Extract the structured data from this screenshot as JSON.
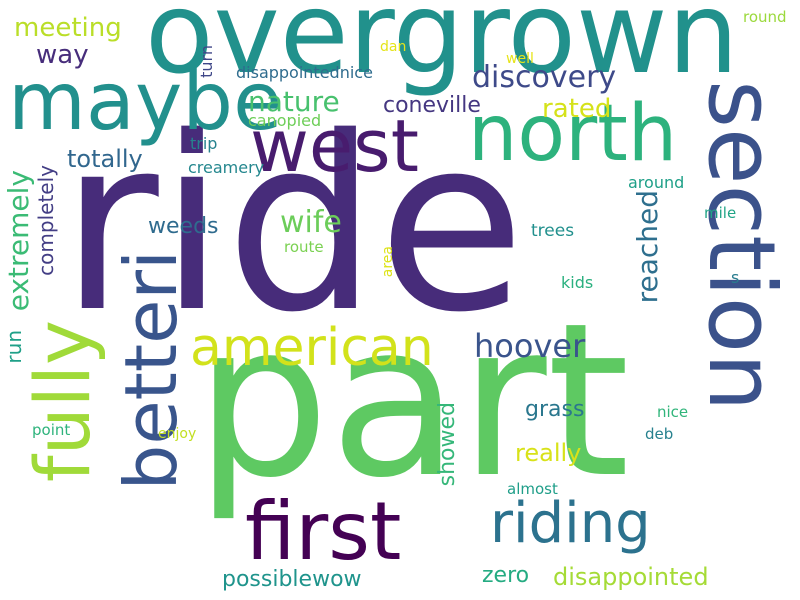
{
  "words": [
    {
      "text": "ride",
      "color": "#472c7a"
    },
    {
      "text": "part",
      "color": "#5ec962"
    },
    {
      "text": "overgrown",
      "color": "#21918c"
    },
    {
      "text": "section",
      "color": "#3b528b"
    },
    {
      "text": "maybe",
      "color": "#22908d"
    },
    {
      "text": "west",
      "color": "#481c6e"
    },
    {
      "text": "north",
      "color": "#2db27d"
    },
    {
      "text": "fully",
      "color": "#a0da39"
    },
    {
      "text": "betteri",
      "color": "#39558c"
    },
    {
      "text": "first",
      "color": "#440154"
    },
    {
      "text": "american",
      "color": "#d2e21b"
    },
    {
      "text": "riding",
      "color": "#2c728e"
    },
    {
      "text": "discovery",
      "color": "#3e4a89"
    },
    {
      "text": "hoover",
      "color": "#3a548c"
    },
    {
      "text": "nature",
      "color": "#48c16e"
    },
    {
      "text": "coneville",
      "color": "#453781"
    },
    {
      "text": "rated",
      "color": "#d5e21a"
    },
    {
      "text": "totally",
      "color": "#31678e"
    },
    {
      "text": "extremely",
      "color": "#3bbb75"
    },
    {
      "text": "completely",
      "color": "#433e85"
    },
    {
      "text": "meeting",
      "color": "#bade28"
    },
    {
      "text": "way",
      "color": "#472d7b"
    },
    {
      "text": "wife",
      "color": "#6ccd5a"
    },
    {
      "text": "weeds",
      "color": "#2f6b8e"
    },
    {
      "text": "reached",
      "color": "#2e6f8e"
    },
    {
      "text": "run",
      "color": "#1fa088"
    },
    {
      "text": "grass",
      "color": "#2a778e"
    },
    {
      "text": "really",
      "color": "#d8e219"
    },
    {
      "text": "showed",
      "color": "#35b779"
    },
    {
      "text": "zero",
      "color": "#25ab82"
    },
    {
      "text": "disappointed",
      "color": "#a5db36"
    },
    {
      "text": "possiblewow",
      "color": "#1f948c"
    },
    {
      "text": "disappointednice",
      "color": "#2f6c8e"
    },
    {
      "text": "canopied",
      "color": "#6ece58"
    },
    {
      "text": "trip",
      "color": "#26828e"
    },
    {
      "text": "creamery",
      "color": "#24878e"
    },
    {
      "text": "turn",
      "color": "#3f4788"
    },
    {
      "text": "dan",
      "color": "#e5e419"
    },
    {
      "text": "well",
      "color": "#e7e419"
    },
    {
      "text": "round",
      "color": "#9bd93c"
    },
    {
      "text": "around",
      "color": "#1fa088"
    },
    {
      "text": "mile",
      "color": "#20a486"
    },
    {
      "text": "trees",
      "color": "#21908d"
    },
    {
      "text": "route",
      "color": "#7ad151"
    },
    {
      "text": "area",
      "color": "#dde318"
    },
    {
      "text": "kids",
      "color": "#2ab07f"
    },
    {
      "text": "s",
      "color": "#287c8e"
    },
    {
      "text": "nice",
      "color": "#31b57b"
    },
    {
      "text": "deb",
      "color": "#26818e"
    },
    {
      "text": "point",
      "color": "#2eb37c"
    },
    {
      "text": "enjoy",
      "color": "#c2df23"
    },
    {
      "text": "almost",
      "color": "#1f9e89"
    }
  ]
}
